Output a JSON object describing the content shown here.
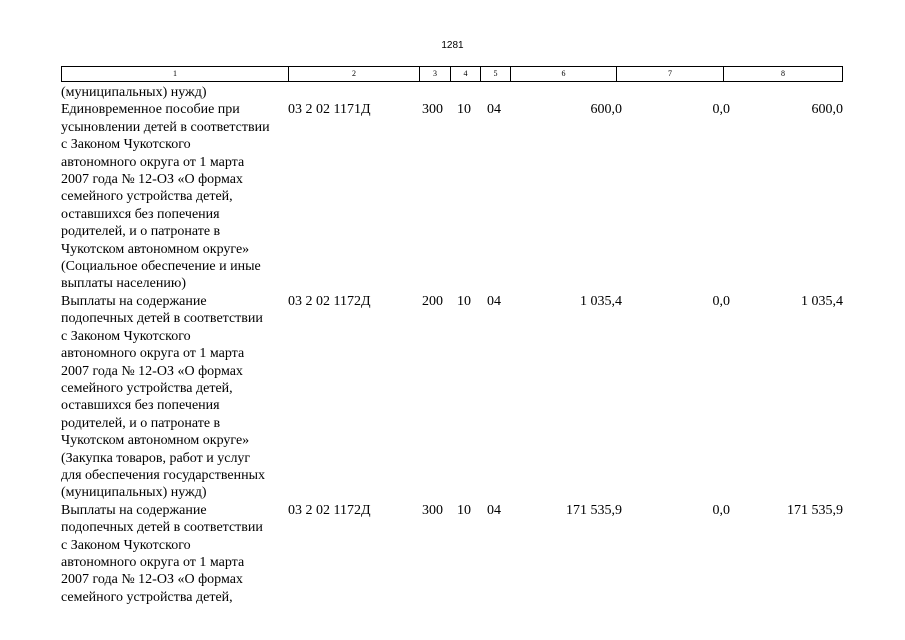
{
  "page_number": "1281",
  "header": [
    "1",
    "2",
    "3",
    "4",
    "5",
    "6",
    "7",
    "8"
  ],
  "continuation": "(муниципальных) нужд)",
  "rows": [
    {
      "description": "Единовременное пособие при\nусыновлении детей в соответствии\nс Законом Чукотского\nавтономного округа от 1 марта\n2007 года № 12-ОЗ «О формах\nсемейного устройства детей,\nоставшихся без попечения\nродителей, и о патронате в\nЧукотском автономном округе»\n(Социальное обеспечение и иные\nвыплаты населению)",
      "code": "03 2 02 1171Д",
      "c3": "300",
      "c4": "10",
      "c5": "04",
      "c6": "600,0",
      "c7": "0,0",
      "c8": "600,0"
    },
    {
      "description": "Выплаты на содержание\nподопечных детей в соответствии\nс Законом Чукотского\nавтономного округа от 1 марта\n2007 года № 12-ОЗ «О формах\nсемейного устройства детей,\nоставшихся без попечения\nродителей, и о патронате в\nЧукотском автономном округе»\n(Закупка товаров, работ и услуг\nдля обеспечения государственных\n(муниципальных) нужд)",
      "code": "03 2 02 1172Д",
      "c3": "200",
      "c4": "10",
      "c5": "04",
      "c6": "1 035,4",
      "c7": "0,0",
      "c8": "1 035,4"
    },
    {
      "description": "Выплаты на содержание\nподопечных детей в соответствии\nс Законом Чукотского\nавтономного округа от 1 марта\n2007 года № 12-ОЗ «О формах\nсемейного устройства детей,",
      "code": "03 2 02 1172Д",
      "c3": "300",
      "c4": "10",
      "c5": "04",
      "c6": "171 535,9",
      "c7": "0,0",
      "c8": "171 535,9"
    }
  ]
}
